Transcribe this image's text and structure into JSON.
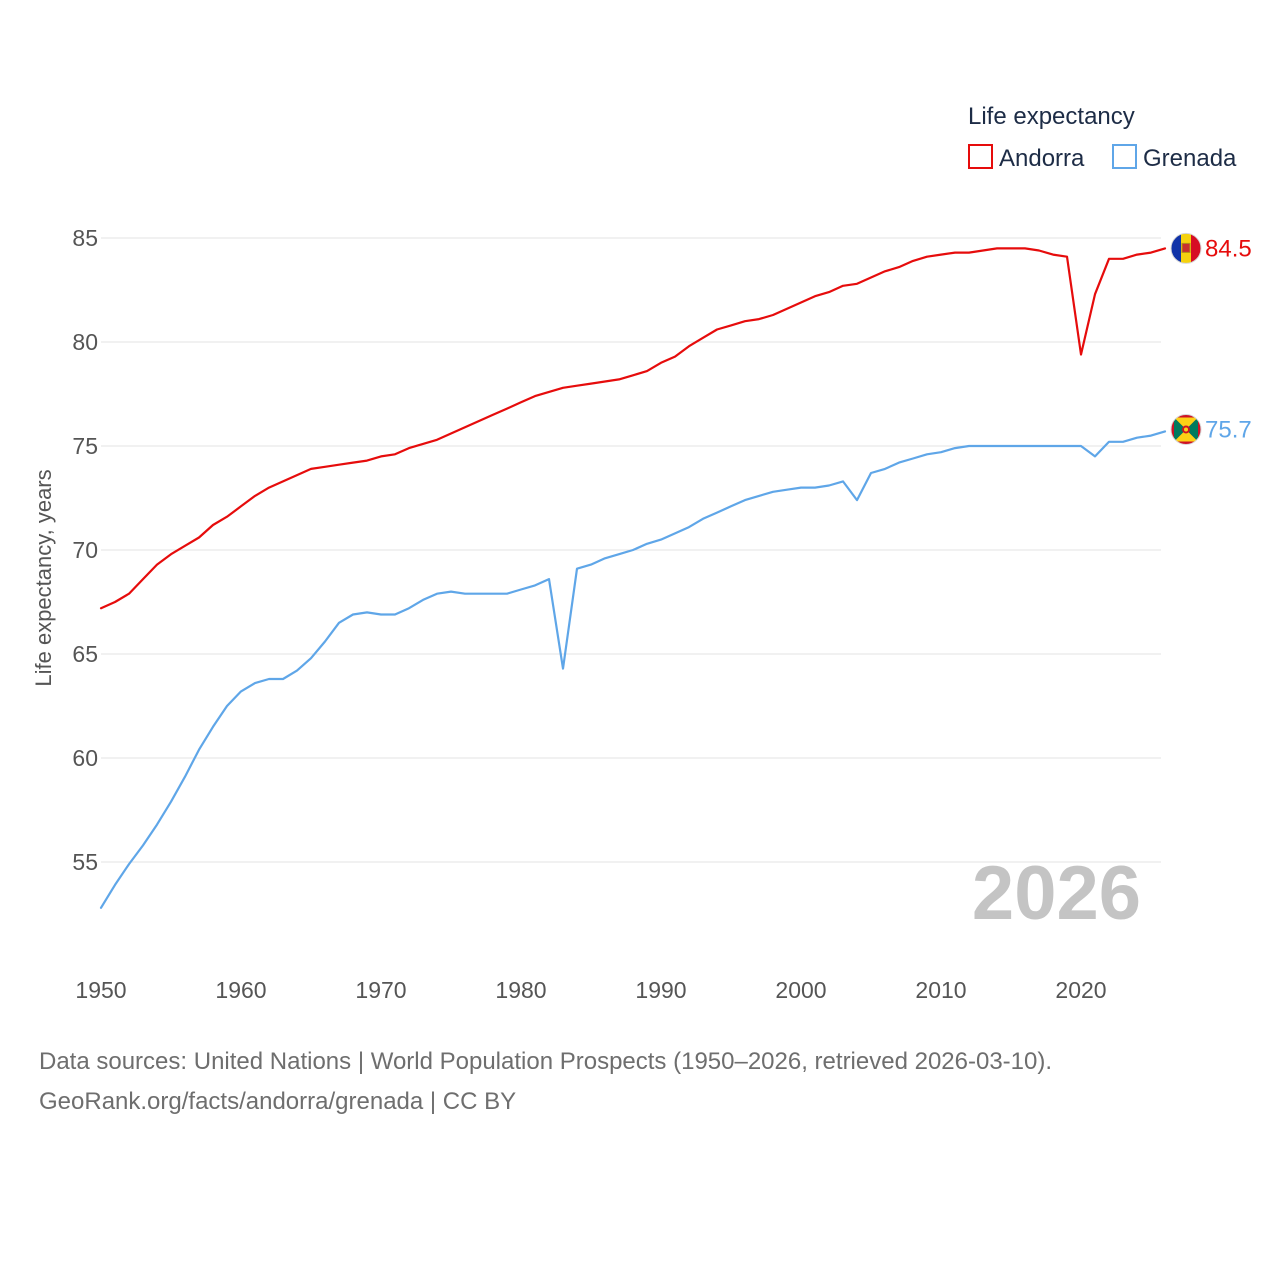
{
  "chart_data": {
    "type": "line",
    "title": "",
    "xlabel": "",
    "ylabel": "Life expectancy, years",
    "xlim": [
      1950,
      2026
    ],
    "ylim": [
      52,
      86
    ],
    "x_ticks": [
      1950,
      1960,
      1970,
      1980,
      1990,
      2000,
      2010,
      2020
    ],
    "y_ticks": [
      55,
      60,
      65,
      70,
      75,
      80,
      85
    ],
    "legend": {
      "title": "Life expectancy",
      "position": "top-right"
    },
    "current_year": "2026",
    "x": [
      1950,
      1951,
      1952,
      1953,
      1954,
      1955,
      1956,
      1957,
      1958,
      1959,
      1960,
      1961,
      1962,
      1963,
      1964,
      1965,
      1966,
      1967,
      1968,
      1969,
      1970,
      1971,
      1972,
      1973,
      1974,
      1975,
      1976,
      1977,
      1978,
      1979,
      1980,
      1981,
      1982,
      1983,
      1984,
      1985,
      1986,
      1987,
      1988,
      1989,
      1990,
      1991,
      1992,
      1993,
      1994,
      1995,
      1996,
      1997,
      1998,
      1999,
      2000,
      2001,
      2002,
      2003,
      2004,
      2005,
      2006,
      2007,
      2008,
      2009,
      2010,
      2011,
      2012,
      2013,
      2014,
      2015,
      2016,
      2017,
      2018,
      2019,
      2020,
      2021,
      2022,
      2023,
      2024,
      2025,
      2026
    ],
    "series": [
      {
        "name": "Andorra",
        "color": "#e60c0c",
        "end_label": "84.5",
        "flag": "andorra-flag",
        "values": [
          67.2,
          67.5,
          67.9,
          68.6,
          69.3,
          69.8,
          70.2,
          70.6,
          71.2,
          71.6,
          72.1,
          72.6,
          73.0,
          73.3,
          73.6,
          73.9,
          74.0,
          74.1,
          74.2,
          74.3,
          74.5,
          74.6,
          74.9,
          75.1,
          75.3,
          75.6,
          75.9,
          76.2,
          76.5,
          76.8,
          77.1,
          77.4,
          77.6,
          77.8,
          77.9,
          78.0,
          78.1,
          78.2,
          78.4,
          78.6,
          79.0,
          79.3,
          79.8,
          80.2,
          80.6,
          80.8,
          81.0,
          81.1,
          81.3,
          81.6,
          81.9,
          82.2,
          82.4,
          82.7,
          82.8,
          83.1,
          83.4,
          83.6,
          83.9,
          84.1,
          84.2,
          84.3,
          84.3,
          84.4,
          84.5,
          84.5,
          84.5,
          84.4,
          84.2,
          84.1,
          79.4,
          82.3,
          84.0,
          84.0,
          84.2,
          84.3,
          84.5
        ]
      },
      {
        "name": "Grenada",
        "color": "#5fa6e8",
        "end_label": "75.7",
        "flag": "grenada-flag",
        "values": [
          52.8,
          53.9,
          54.9,
          55.8,
          56.8,
          57.9,
          59.1,
          60.4,
          61.5,
          62.5,
          63.2,
          63.6,
          63.8,
          63.8,
          64.2,
          64.8,
          65.6,
          66.5,
          66.9,
          67.0,
          66.9,
          66.9,
          67.2,
          67.6,
          67.9,
          68.0,
          67.9,
          67.9,
          67.9,
          67.9,
          68.1,
          68.3,
          68.6,
          64.3,
          69.1,
          69.3,
          69.6,
          69.8,
          70.0,
          70.3,
          70.5,
          70.8,
          71.1,
          71.5,
          71.8,
          72.1,
          72.4,
          72.6,
          72.8,
          72.9,
          73.0,
          73.0,
          73.1,
          73.3,
          72.4,
          73.7,
          73.9,
          74.2,
          74.4,
          74.6,
          74.7,
          74.9,
          75.0,
          75.0,
          75.0,
          75.0,
          75.0,
          75.0,
          75.0,
          75.0,
          75.0,
          74.5,
          75.2,
          75.2,
          75.4,
          75.5,
          75.7
        ]
      }
    ]
  },
  "footer": {
    "line1": "Data sources: United Nations | World Population Prospects (1950–2026, retrieved 2026-03-10).",
    "line2": "GeoRank.org/facts/andorra/grenada | CC BY"
  }
}
